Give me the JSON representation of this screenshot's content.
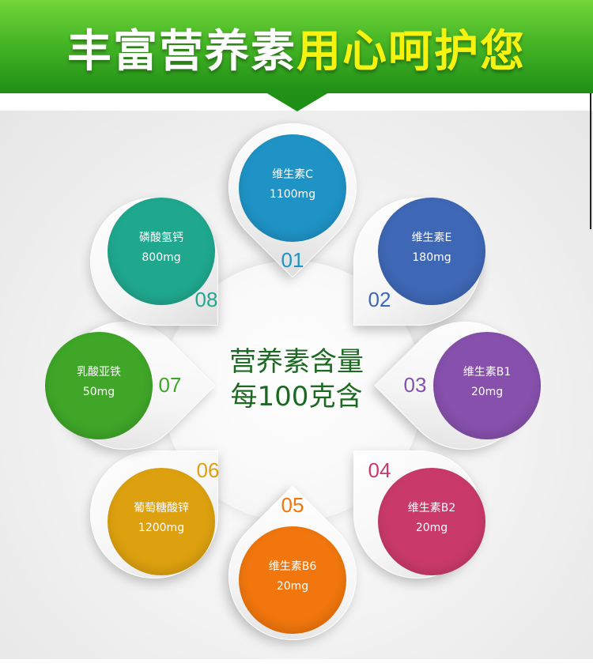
{
  "header": {
    "title_part1": "丰富营养素",
    "title_part2": "用心呵护您"
  },
  "center": {
    "line1": "营养素含量",
    "line2": "每100克含"
  },
  "nutrients": [
    {
      "number": "01",
      "name": "维生素C",
      "amount": "1100mg",
      "color": "#1f93c6"
    },
    {
      "number": "02",
      "name": "维生素E",
      "amount": "180mg",
      "color": "#3e67b5"
    },
    {
      "number": "03",
      "name": "维生素B1",
      "amount": "20mg",
      "color": "#8650ac"
    },
    {
      "number": "04",
      "name": "维生素B2",
      "amount": "20mg",
      "color": "#c93a6a"
    },
    {
      "number": "05",
      "name": "维生素B6",
      "amount": "20mg",
      "color": "#f0760d"
    },
    {
      "number": "06",
      "name": "葡萄糖酸锌",
      "amount": "1200mg",
      "color": "#dda10f"
    },
    {
      "number": "07",
      "name": "乳酸亚铁",
      "amount": "50mg",
      "color": "#3fa628"
    },
    {
      "number": "08",
      "name": "磷酸氢钙",
      "amount": "800mg",
      "color": "#1fa88e"
    }
  ]
}
